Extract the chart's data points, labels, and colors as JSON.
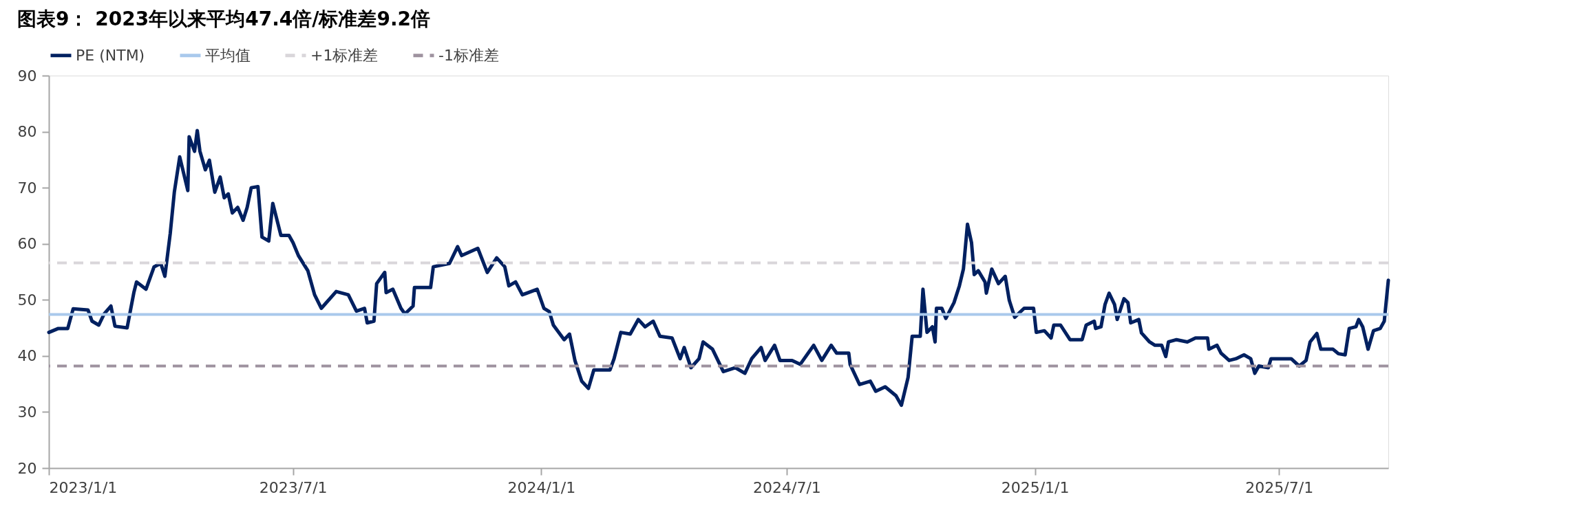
{
  "chart_data": {
    "type": "line",
    "title": "图表9： 2023年以来平均47.4倍/标准差9.2倍",
    "xlim": [
      "2023-01-01",
      "2025-09-20"
    ],
    "xticks": [
      {
        "value": "2023-01-01",
        "label": "2023/1/1"
      },
      {
        "value": "2023-07-01",
        "label": "2023/7/1"
      },
      {
        "value": "2024-01-01",
        "label": "2024/1/1"
      },
      {
        "value": "2024-07-01",
        "label": "2024/7/1"
      },
      {
        "value": "2025-01-01",
        "label": "2025/1/1"
      },
      {
        "value": "2025-07-01",
        "label": "2025/7/1"
      }
    ],
    "ylim": [
      20,
      90
    ],
    "yticks": [
      20,
      30,
      40,
      50,
      60,
      70,
      80,
      90
    ],
    "grid": false,
    "legend": "top",
    "marker": "none",
    "line_style": "solid",
    "x": [
      "2023-01-01",
      "2023-01-08",
      "2023-01-15",
      "2023-01-19",
      "2023-01-30",
      "2023-02-02",
      "2023-02-07",
      "2023-02-11",
      "2023-02-16",
      "2023-02-19",
      "2023-02-28",
      "2023-03-05",
      "2023-03-07",
      "2023-03-14",
      "2023-03-20",
      "2023-03-25",
      "2023-03-28",
      "2023-04-01",
      "2023-04-04",
      "2023-04-08",
      "2023-04-14",
      "2023-04-15",
      "2023-04-19",
      "2023-04-21",
      "2023-04-23",
      "2023-04-27",
      "2023-04-30",
      "2023-05-04",
      "2023-05-08",
      "2023-05-11",
      "2023-05-14",
      "2023-05-17",
      "2023-05-21",
      "2023-05-25",
      "2023-05-28",
      "2023-05-31",
      "2023-06-05",
      "2023-06-08",
      "2023-06-13",
      "2023-06-16",
      "2023-06-22",
      "2023-06-28",
      "2023-07-01",
      "2023-07-05",
      "2023-07-12",
      "2023-07-17",
      "2023-07-22",
      "2023-08-02",
      "2023-08-11",
      "2023-08-17",
      "2023-08-23",
      "2023-08-25",
      "2023-08-30",
      "2023-09-01",
      "2023-09-07",
      "2023-09-08",
      "2023-09-13",
      "2023-09-19",
      "2023-09-22",
      "2023-09-28",
      "2023-09-29",
      "2023-10-11",
      "2023-10-13",
      "2023-10-25",
      "2023-10-31",
      "2023-11-03",
      "2023-11-15",
      "2023-11-22",
      "2023-11-29",
      "2023-12-05",
      "2023-12-08",
      "2023-12-13",
      "2023-12-18",
      "2023-12-29",
      "2024-01-03",
      "2024-01-07",
      "2024-01-10",
      "2024-01-18",
      "2024-01-22",
      "2024-01-26",
      "2024-01-31",
      "2024-02-05",
      "2024-02-09",
      "2024-02-21",
      "2024-02-24",
      "2024-02-29",
      "2024-03-07",
      "2024-03-13",
      "2024-03-18",
      "2024-03-24",
      "2024-03-29",
      "2024-04-07",
      "2024-04-13",
      "2024-04-16",
      "2024-04-21",
      "2024-04-27",
      "2024-04-30",
      "2024-05-07",
      "2024-05-15",
      "2024-05-24",
      "2024-05-31",
      "2024-06-05",
      "2024-06-12",
      "2024-06-15",
      "2024-06-22",
      "2024-06-26",
      "2024-07-05",
      "2024-07-11",
      "2024-07-21",
      "2024-07-27",
      "2024-08-03",
      "2024-08-07",
      "2024-08-16",
      "2024-08-17",
      "2024-08-24",
      "2024-09-01",
      "2024-09-05",
      "2024-09-12",
      "2024-09-20",
      "2024-09-24",
      "2024-09-29",
      "2024-10-02",
      "2024-10-08",
      "2024-10-10",
      "2024-10-13",
      "2024-10-17",
      "2024-10-19",
      "2024-10-20",
      "2024-10-24",
      "2024-10-27",
      "2024-11-02",
      "2024-11-06",
      "2024-11-09",
      "2024-11-12",
      "2024-11-15",
      "2024-11-17",
      "2024-11-20",
      "2024-11-25",
      "2024-11-26",
      "2024-11-30",
      "2024-12-05",
      "2024-12-10",
      "2024-12-13",
      "2024-12-17",
      "2024-12-24",
      "2024-12-31",
      "2025-01-02",
      "2025-01-08",
      "2025-01-13",
      "2025-01-15",
      "2025-01-20",
      "2025-01-27",
      "2025-02-05",
      "2025-02-08",
      "2025-02-14",
      "2025-02-15",
      "2025-02-19",
      "2025-02-22",
      "2025-02-25",
      "2025-03-01",
      "2025-03-03",
      "2025-03-08",
      "2025-03-11",
      "2025-03-13",
      "2025-03-19",
      "2025-03-21",
      "2025-03-27",
      "2025-03-31",
      "2025-04-05",
      "2025-04-08",
      "2025-04-10",
      "2025-04-16",
      "2025-04-24",
      "2025-04-30",
      "2025-05-09",
      "2025-05-10",
      "2025-05-16",
      "2025-05-19",
      "2025-05-25",
      "2025-05-30",
      "2025-06-05",
      "2025-06-10",
      "2025-06-13",
      "2025-06-16",
      "2025-06-23",
      "2025-06-25",
      "2025-07-02",
      "2025-07-10",
      "2025-07-16",
      "2025-07-21",
      "2025-07-24",
      "2025-07-29",
      "2025-08-01",
      "2025-08-10",
      "2025-08-14",
      "2025-08-19",
      "2025-08-22",
      "2025-08-27",
      "2025-08-29",
      "2025-09-01",
      "2025-09-05",
      "2025-09-09",
      "2025-09-14",
      "2025-09-17",
      "2025-09-20"
    ],
    "series": [
      {
        "name": "PE (NTM)",
        "color": "#002060",
        "values": [
          44.2,
          44.9,
          44.9,
          48.4,
          48.2,
          46.2,
          45.5,
          47.5,
          48.9,
          45.3,
          45.0,
          51.3,
          53.2,
          51.9,
          55.9,
          56.5,
          54.2,
          61.9,
          69.2,
          75.5,
          69.5,
          79.1,
          76.5,
          80.2,
          76.5,
          73.2,
          74.9,
          69.2,
          71.9,
          68.2,
          68.9,
          65.5,
          66.5,
          64.2,
          66.5,
          70.0,
          70.2,
          61.2,
          60.5,
          67.2,
          61.5,
          61.5,
          60.2,
          57.9,
          55.2,
          50.9,
          48.5,
          51.5,
          50.9,
          48.0,
          48.5,
          45.9,
          46.2,
          52.9,
          54.9,
          51.3,
          51.9,
          48.5,
          47.5,
          48.9,
          52.2,
          52.2,
          55.9,
          56.5,
          59.5,
          57.9,
          59.2,
          54.9,
          57.5,
          55.9,
          52.5,
          53.2,
          50.9,
          51.9,
          48.5,
          47.9,
          45.5,
          42.9,
          43.9,
          39.2,
          35.5,
          34.2,
          37.5,
          37.5,
          39.5,
          44.2,
          43.9,
          46.5,
          45.2,
          46.2,
          43.5,
          43.2,
          39.5,
          41.5,
          37.9,
          39.5,
          42.5,
          41.2,
          37.2,
          37.9,
          36.9,
          39.5,
          41.5,
          39.2,
          41.9,
          39.2,
          39.2,
          38.5,
          41.9,
          39.2,
          41.9,
          40.5,
          40.5,
          38.5,
          34.9,
          35.5,
          33.7,
          34.5,
          32.9,
          31.2,
          36.2,
          43.5,
          43.5,
          51.9,
          44.2,
          45.2,
          42.5,
          48.5,
          48.5,
          46.7,
          49.5,
          52.5,
          55.5,
          63.5,
          60.2,
          54.5,
          55.2,
          53.2,
          51.2,
          55.5,
          52.9,
          54.2,
          49.9,
          46.9,
          48.5,
          48.5,
          44.2,
          44.5,
          43.2,
          45.5,
          45.5,
          42.9,
          42.9,
          45.5,
          46.2,
          44.9,
          45.2,
          49.2,
          51.2,
          49.2,
          46.5,
          50.2,
          49.5,
          45.9,
          46.5,
          44.1,
          42.5,
          41.9,
          41.9,
          39.9,
          42.5,
          42.9,
          42.5,
          43.2,
          43.2,
          41.2,
          41.9,
          40.5,
          39.2,
          39.5,
          40.2,
          39.5,
          36.9,
          38.2,
          37.9,
          39.5,
          39.5,
          39.5,
          38.2,
          39.2,
          42.5,
          44.0,
          41.2,
          41.2,
          40.4,
          40.2,
          44.9,
          45.2,
          46.5,
          45.2,
          41.2,
          44.5,
          44.9,
          46.2,
          53.5
        ]
      }
    ],
    "ref_lines": [
      {
        "axis": "y",
        "value": 47.4,
        "label": "平均值",
        "color": "#a9c9ec",
        "line_style": "solid"
      },
      {
        "axis": "y",
        "value": 56.6,
        "label": "+1标准差",
        "color": "#d9d6da",
        "line_style": "dashed"
      },
      {
        "axis": "y",
        "value": 38.2,
        "label": "-1标准差",
        "color": "#9e929f",
        "line_style": "dashed"
      }
    ]
  }
}
